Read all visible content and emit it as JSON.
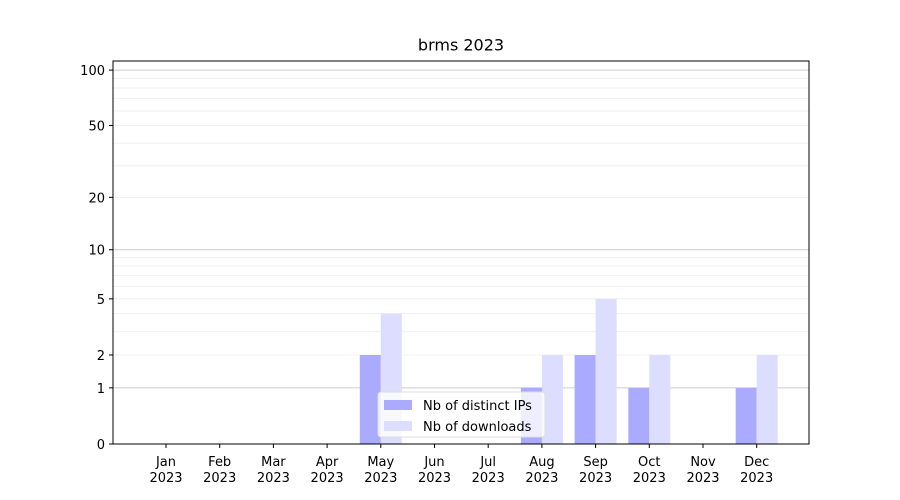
{
  "chart_data": {
    "type": "bar",
    "title": "brms 2023",
    "scale": "log1p",
    "categories": [
      "Jan 2023",
      "Feb 2023",
      "Mar 2023",
      "Apr 2023",
      "May 2023",
      "Jun 2023",
      "Jul 2023",
      "Aug 2023",
      "Sep 2023",
      "Oct 2023",
      "Nov 2023",
      "Dec 2023"
    ],
    "series": [
      {
        "name": "Nb of distinct IPs",
        "color": "#aaaaff",
        "values": [
          0,
          0,
          0,
          0,
          2,
          0,
          0,
          1,
          2,
          1,
          0,
          1
        ]
      },
      {
        "name": "Nb of downloads",
        "color": "#ddddff",
        "values": [
          0,
          0,
          0,
          0,
          4,
          0,
          0,
          2,
          5,
          2,
          0,
          2
        ]
      }
    ],
    "ylim": [
      0,
      112
    ],
    "yticks": [
      0,
      1,
      2,
      5,
      10,
      20,
      50,
      100
    ],
    "major_gridlines": [
      1,
      10,
      100
    ],
    "minor_gridlines": [
      2,
      3,
      4,
      5,
      6,
      7,
      8,
      9,
      20,
      30,
      40,
      50,
      60,
      70,
      80,
      90
    ],
    "legend": "lower center"
  }
}
